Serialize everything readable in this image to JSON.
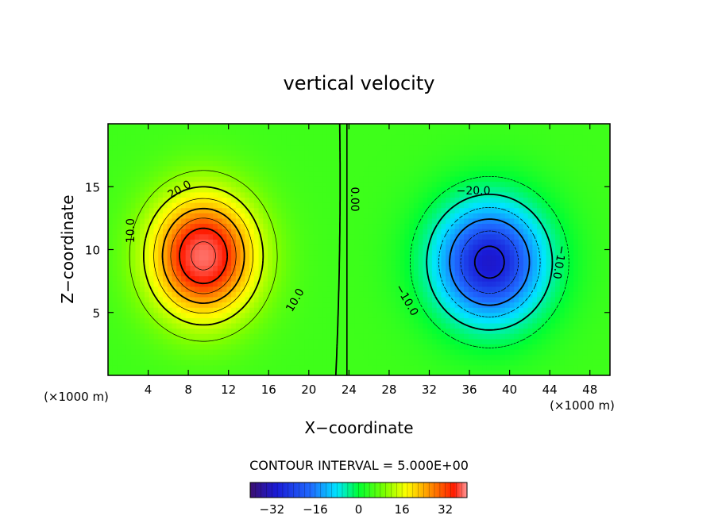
{
  "chart_data": {
    "type": "heatmap",
    "title": "vertical velocity",
    "xlabel": "X−coordinate",
    "ylabel": "Z−coordinate",
    "x_unit_left": "(×1000 m)",
    "x_unit_right": "(×1000 m)",
    "xlim": [
      0,
      50
    ],
    "ylim": [
      0,
      20
    ],
    "x_ticks": [
      4,
      8,
      12,
      16,
      20,
      24,
      28,
      32,
      36,
      40,
      44,
      48
    ],
    "y_ticks": [
      5,
      10,
      15
    ],
    "contour_interval_text": "CONTOUR INTERVAL = 5.000E+00",
    "contour_interval": 5.0,
    "colorbar": {
      "range": [
        -40,
        40
      ],
      "ticks": [
        -32,
        -16,
        0,
        16,
        32
      ],
      "tick_labels": [
        "−32",
        "−16",
        "0",
        "16",
        "32"
      ]
    },
    "fields": [
      {
        "name": "updraft",
        "sign": "positive",
        "center_x": 9.5,
        "center_z": 9.5,
        "sigma_x": 5.2,
        "sigma_z": 4.8,
        "peak": 37
      },
      {
        "name": "downdraft",
        "sign": "negative",
        "center_x": 38.0,
        "center_z": 9.0,
        "sigma_x": 5.8,
        "sigma_z": 5.0,
        "peak": -32
      }
    ],
    "contour_labels": [
      {
        "text": "20.0",
        "x": 7.1,
        "z": 14.8
      },
      {
        "text": "10.0",
        "x": 2.2,
        "z": 11.5
      },
      {
        "text": "10.0",
        "x": 18.6,
        "z": 6.0
      },
      {
        "text": "0.00",
        "x": 24.6,
        "z": 14.0
      },
      {
        "text": "−20.0",
        "x": 36.4,
        "z": 14.7
      },
      {
        "text": "−10.0",
        "x": 29.8,
        "z": 6.0
      },
      {
        "text": "−10.0",
        "x": 45.0,
        "z": 9.0
      }
    ],
    "colors": [
      "#3b0f6f",
      "#1a1ad6",
      "#1f6bff",
      "#00e5ff",
      "#00ff33",
      "#7cff00",
      "#ffff00",
      "#ff9900",
      "#ff1a00",
      "#ff9a9a"
    ]
  }
}
